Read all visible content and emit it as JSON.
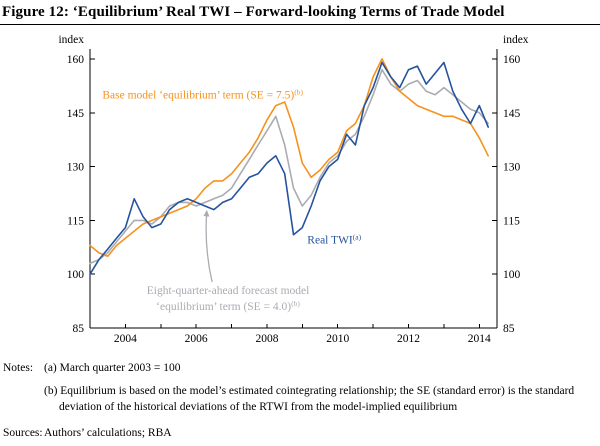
{
  "figure": {
    "title": "Figure 12: ‘Equilibrium’ Real TWI – Forward-looking Terms of Trade Model",
    "notes_label": "Notes:",
    "notes": [
      "(a) March quarter 2003 = 100",
      "(b) Equilibrium is based on the model’s estimated cointegrating relationship; the SE (standard error) is the standard deviation of the historical deviations of the RTWI from the model-implied equilibrium"
    ],
    "sources_label": "Sources:",
    "sources": "Authors’ calculations; RBA"
  },
  "chart_data": {
    "type": "line",
    "title": "Figure 12: ‘Equilibrium’ Real TWI – Forward-looking Terms of Trade Model",
    "unit_label": "index",
    "xlim": [
      2003,
      2014.5
    ],
    "ylim": [
      85,
      165
    ],
    "yticks": [
      85,
      100,
      115,
      130,
      145,
      160
    ],
    "xticks_labeled": [
      2004,
      2006,
      2008,
      2010,
      2012,
      2014
    ],
    "grid": false,
    "legend": "inline-annotations",
    "x": [
      2003,
      2003.25,
      2003.5,
      2003.75,
      2004,
      2004.25,
      2004.5,
      2004.75,
      2005,
      2005.25,
      2005.5,
      2005.75,
      2006,
      2006.25,
      2006.5,
      2006.75,
      2007,
      2007.25,
      2007.5,
      2007.75,
      2008,
      2008.25,
      2008.5,
      2008.75,
      2009,
      2009.25,
      2009.5,
      2009.75,
      2010,
      2010.25,
      2010.5,
      2010.75,
      2011,
      2011.25,
      2011.5,
      2011.75,
      2012,
      2012.25,
      2012.5,
      2012.75,
      2013,
      2013.25,
      2013.5,
      2013.75,
      2014,
      2014.25
    ],
    "series": [
      {
        "name": "real-twi",
        "label": "Real TWI",
        "label_sup": "(a)",
        "color": "#25539e",
        "values": [
          100,
          104,
          107,
          110,
          113,
          121,
          116,
          113,
          114,
          118,
          120,
          121,
          120,
          119,
          118,
          120,
          121,
          124,
          127,
          128,
          131,
          133,
          128,
          111,
          113,
          119,
          126,
          130,
          132,
          139,
          136,
          147,
          152,
          159,
          155,
          152,
          157,
          158,
          153,
          156,
          159,
          151,
          146,
          142,
          147,
          141
        ]
      },
      {
        "name": "base-model-equilibrium",
        "label": "Base model ‘equilibrium’ term (SE = 7.5)",
        "label_sup": "(b)",
        "color": "#f6921e",
        "values": [
          108,
          106,
          105,
          108,
          110,
          112,
          114,
          115,
          116,
          117,
          118,
          119,
          121,
          124,
          126,
          126,
          128,
          131,
          134,
          138,
          143,
          147,
          148,
          141,
          131,
          127,
          129,
          132,
          134,
          140,
          142,
          147,
          155,
          160,
          155,
          151,
          149,
          147,
          146,
          145,
          144,
          144,
          143,
          142,
          138,
          133
        ]
      },
      {
        "name": "eight-quarter-ahead-forecast-equilibrium",
        "label": "Eight-quarter-ahead forecast model ‘equilibrium’ term (SE = 4.0)",
        "label_lines": [
          "Eight-quarter-ahead forecast model",
          "‘equilibrium’ term (SE = 4.0)"
        ],
        "label_sup": "(b)",
        "color": "#aaacb2",
        "values": [
          103,
          104,
          106,
          109,
          112,
          115,
          115,
          114,
          116,
          119,
          120,
          120,
          119,
          120,
          121,
          122,
          124,
          128,
          132,
          136,
          140,
          144,
          136,
          124,
          119,
          122,
          127,
          131,
          133,
          137,
          139,
          144,
          150,
          157,
          153,
          151,
          153,
          154,
          151,
          150,
          152,
          150,
          148,
          146,
          145,
          142
        ]
      }
    ],
    "annotations": {
      "base_label": {
        "x": 2003.35,
        "y": 149
      },
      "twi_label": {
        "x": 2009.9,
        "y": 108.5
      },
      "forecast_label": {
        "x": 2006.9,
        "y": 94.5
      },
      "arrow": {
        "from": {
          "x": 2006.45,
          "y": 97.8
        },
        "to": {
          "x": 2006.3,
          "y": 117.5
        }
      }
    }
  }
}
